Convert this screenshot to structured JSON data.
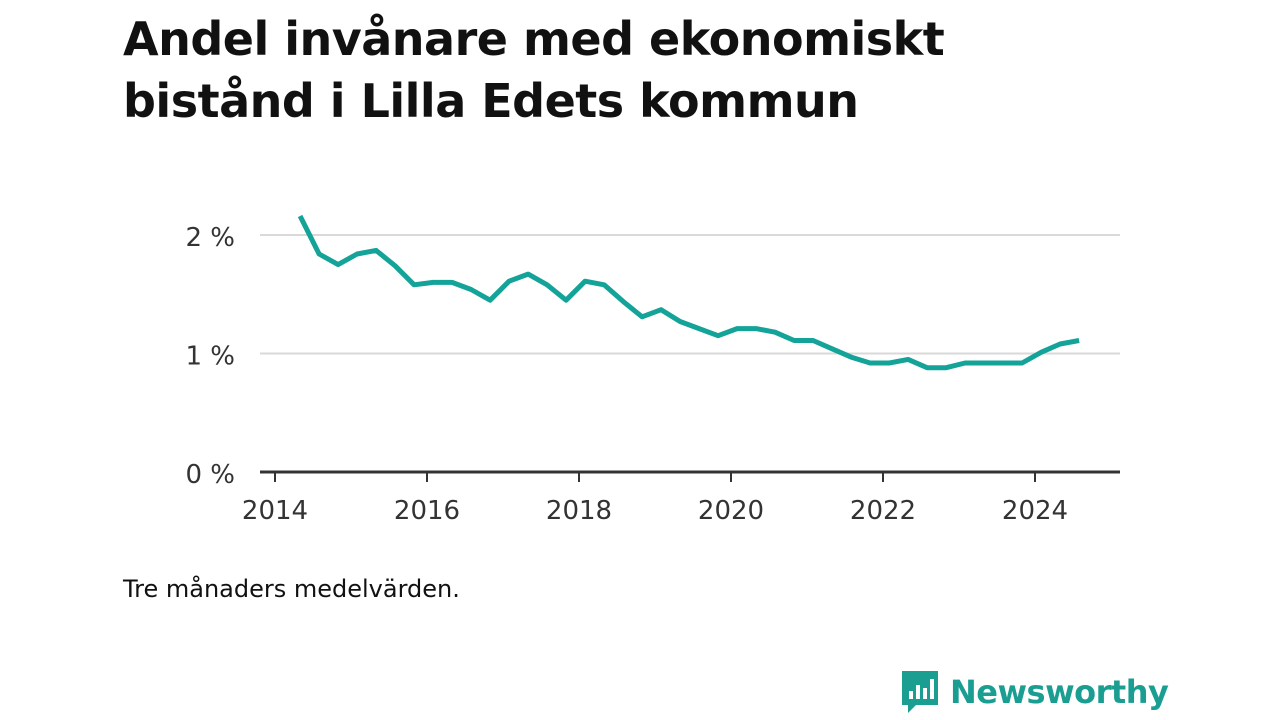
{
  "title": "Andel invånare med ekonomiskt bistånd i Lilla Edets kommun",
  "note": "Tre månaders medelvärden.",
  "brand": {
    "name": "Newsworthy",
    "icon": "bar-chart-icon",
    "color": "#1a9e91"
  },
  "colors": {
    "line": "#14a398",
    "grid": "#d9d9d9",
    "axis": "#333333"
  },
  "chart_data": {
    "type": "line",
    "ylim": [
      0,
      2
    ],
    "xlim": [
      2014,
      2025
    ],
    "yticks": [
      0,
      1,
      2
    ],
    "ytick_labels": [
      "0 %",
      "1 %",
      "2 %"
    ],
    "xticks": [
      2014,
      2016,
      2018,
      2020,
      2022,
      2024
    ],
    "xtick_labels": [
      "2014",
      "2016",
      "2018",
      "2020",
      "2022",
      "2024"
    ],
    "grid": true,
    "series": [
      {
        "x": [
          2014.33,
          2014.58,
          2014.83,
          2015.08,
          2015.33,
          2015.58,
          2015.83,
          2016.08,
          2016.33,
          2016.58,
          2016.83,
          2017.08,
          2017.33,
          2017.58,
          2017.83,
          2018.08,
          2018.33,
          2018.58,
          2018.83,
          2019.08,
          2019.33,
          2019.58,
          2019.83,
          2020.08,
          2020.33,
          2020.58,
          2020.83,
          2021.08,
          2021.33,
          2021.58,
          2021.83,
          2022.08,
          2022.33,
          2022.58,
          2022.83,
          2023.08,
          2023.33,
          2023.58,
          2023.83,
          2024.08,
          2024.33,
          2024.58
        ],
        "y": [
          2.16,
          1.84,
          1.75,
          1.84,
          1.87,
          1.74,
          1.58,
          1.6,
          1.6,
          1.54,
          1.45,
          1.61,
          1.67,
          1.58,
          1.45,
          1.61,
          1.58,
          1.44,
          1.31,
          1.37,
          1.27,
          1.21,
          1.15,
          1.21,
          1.21,
          1.18,
          1.11,
          1.11,
          1.04,
          0.97,
          0.92,
          0.92,
          0.95,
          0.88,
          0.88,
          0.92,
          0.92,
          0.92,
          0.92,
          1.01,
          1.08,
          1.11
        ]
      }
    ]
  }
}
